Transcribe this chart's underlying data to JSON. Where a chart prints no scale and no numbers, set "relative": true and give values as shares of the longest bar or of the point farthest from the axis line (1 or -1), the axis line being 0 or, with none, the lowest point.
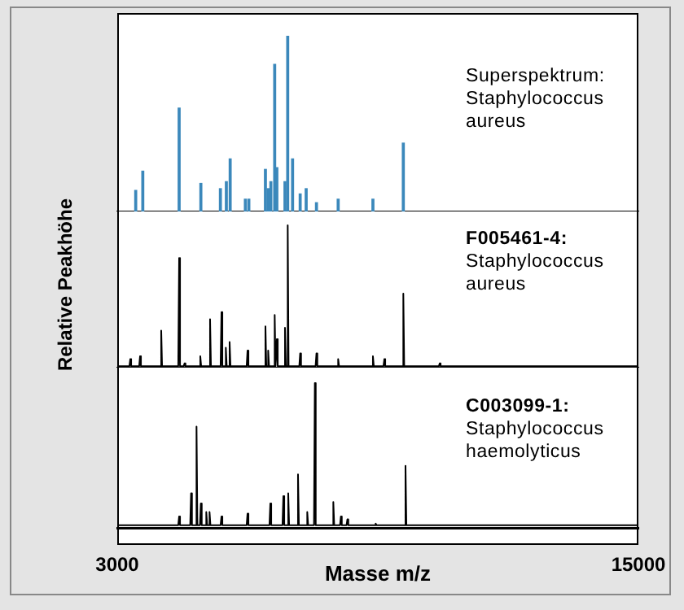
{
  "chart_data": [
    {
      "type": "bar",
      "relative": true,
      "color": "#3b88bb",
      "xlim": [
        3000,
        15000
      ],
      "tick_labels": false,
      "annotations": [
        "Superspektrum:",
        "Staphylococcus",
        "aureus"
      ],
      "x": [
        3425,
        3588,
        4425,
        4925,
        5375,
        5512,
        5600,
        5950,
        6030,
        6412,
        6475,
        6537,
        6625,
        6675,
        6862,
        6925,
        7037,
        7212,
        7350,
        7587,
        8087,
        8887,
        9587
      ],
      "values": [
        0.12,
        0.23,
        0.59,
        0.16,
        0.13,
        0.17,
        0.3,
        0.07,
        0.07,
        0.24,
        0.13,
        0.17,
        0.84,
        0.25,
        0.17,
        1,
        0.3,
        0.1,
        0.13,
        0.05,
        0.07,
        0.07,
        0.39
      ]
    },
    {
      "type": "line",
      "relative": true,
      "color": "#000000",
      "marker": "none",
      "xlim": [
        3000,
        15000
      ],
      "tick_labels": false,
      "title": "F005461-4:",
      "annotations": [
        "Staphylococcus",
        "aureus"
      ],
      "ylabel": "Relative Peakhöhe",
      "x": [
        3000,
        3280,
        3300,
        3320,
        3505,
        3525,
        3545,
        3992,
        4012,
        4032,
        4405,
        4425,
        4445,
        4530,
        4550,
        4570,
        4892,
        4912,
        4932,
        5117,
        5137,
        5157,
        5380,
        5400,
        5420,
        5480,
        5500,
        5520,
        5567,
        5587,
        5607,
        5980,
        6000,
        6020,
        6392,
        6412,
        6432,
        6455,
        6475,
        6495,
        6605,
        6625,
        6645,
        6655,
        6675,
        6695,
        6842,
        6862,
        6882,
        6905,
        6925,
        6945,
        7192,
        7212,
        7232,
        7567,
        7587,
        7607,
        8067,
        8087,
        8107,
        8867,
        8887,
        8907,
        9130,
        9150,
        9170,
        9567,
        9587,
        9607,
        10405,
        10425,
        10445,
        15000
      ],
      "values": [
        0.01,
        0.01,
        0.06,
        0.01,
        0.01,
        0.08,
        0.01,
        0.01,
        0.26,
        0.01,
        0.01,
        0.77,
        0.01,
        0.01,
        0.03,
        0.01,
        0.01,
        0.08,
        0.01,
        0.01,
        0.34,
        0.01,
        0.01,
        0.39,
        0.01,
        0.01,
        0.14,
        0.01,
        0.01,
        0.18,
        0.01,
        0.01,
        0.12,
        0.01,
        0.01,
        0.29,
        0.01,
        0.01,
        0.12,
        0.01,
        0.01,
        0.37,
        0.01,
        0.01,
        0.2,
        0.01,
        0.01,
        0.28,
        0.01,
        0.01,
        1,
        0.01,
        0.01,
        0.1,
        0.01,
        0.01,
        0.1,
        0.01,
        0.01,
        0.06,
        0.01,
        0.01,
        0.08,
        0.01,
        0.01,
        0.06,
        0.01,
        0.01,
        0.52,
        0.01,
        0.01,
        0.03,
        0.01,
        0.01
      ]
    },
    {
      "type": "line",
      "relative": true,
      "color": "#000000",
      "marker": "none",
      "xlim": [
        3000,
        15000
      ],
      "xticks": [
        3000,
        15000
      ],
      "tick_labels": "x",
      "xlabel": "Masse m/z",
      "title": "C003099-1:",
      "annotations": [
        "Staphylococcus",
        "haemolyticus"
      ],
      "x": [
        3000,
        4405,
        4425,
        4445,
        4680,
        4700,
        4720,
        4805,
        4825,
        4845,
        4905,
        4925,
        4945,
        5030,
        5050,
        5070,
        5105,
        5125,
        5145,
        5380,
        5400,
        5420,
        5980,
        6000,
        6020,
        6505,
        6525,
        6545,
        6805,
        6825,
        6845,
        6917,
        6937,
        6957,
        7142,
        7162,
        7182,
        7355,
        7375,
        7395,
        7530,
        7550,
        7570,
        7955,
        7975,
        7995,
        8130,
        8150,
        8170,
        8280,
        8300,
        8320,
        8930,
        8950,
        8970,
        9617,
        9637,
        9657,
        12405,
        12425,
        12445,
        15000
      ],
      "values": [
        0.02,
        0.02,
        0.08,
        0.02,
        0.02,
        0.24,
        0.02,
        0.02,
        0.7,
        0.02,
        0.02,
        0.17,
        0.02,
        0.02,
        0.11,
        0.02,
        0.02,
        0.11,
        0.02,
        0.02,
        0.08,
        0.02,
        0.02,
        0.1,
        0.02,
        0.02,
        0.17,
        0.02,
        0.02,
        0.22,
        0.02,
        0.02,
        0.24,
        0.02,
        0.02,
        0.37,
        0.02,
        0.02,
        0.11,
        0.02,
        0.02,
        1,
        0.02,
        0.02,
        0.18,
        0.02,
        0.02,
        0.08,
        0.02,
        0.02,
        0.06,
        0.02,
        0.02,
        0.03,
        0.02,
        0.02,
        0.43,
        0.02,
        0.02,
        0.02,
        0.02,
        0.02
      ]
    }
  ]
}
